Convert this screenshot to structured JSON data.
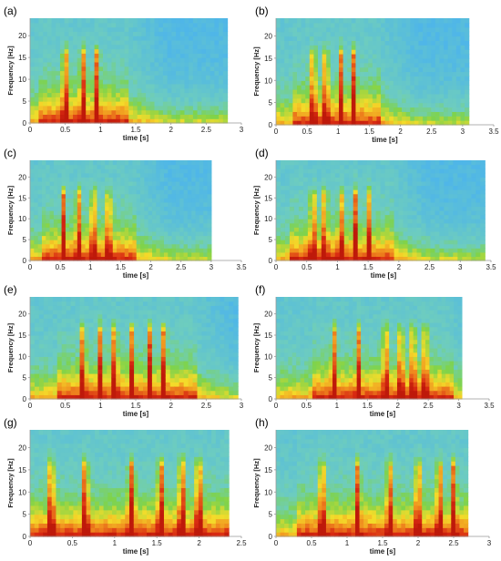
{
  "colors": {
    "background_high": "#4fb6e8",
    "low_freq_red": "#d92a12",
    "mid_yellow": "#f4dc2a",
    "transition_green": "#7fd34a",
    "axis": "#999999"
  },
  "chart_data": [
    {
      "type": "heatmap",
      "label": "(a)",
      "xlabel": "time [s]",
      "ylabel": "Frequency [Hz]",
      "xlim": [
        0,
        3
      ],
      "ylim": [
        0,
        24
      ],
      "xticks": [
        {
          "v": 0,
          "t": "0"
        },
        {
          "v": 0.5,
          "t": "0.5"
        },
        {
          "v": 1,
          "t": "1"
        },
        {
          "v": 1.5,
          "t": "1.5"
        },
        {
          "v": 2,
          "t": "2"
        },
        {
          "v": 2.5,
          "t": "2.5"
        },
        {
          "v": 3,
          "t": "3"
        }
      ],
      "yticks": [
        {
          "v": 0,
          "t": "0"
        },
        {
          "v": 5,
          "t": "5"
        },
        {
          "v": 10,
          "t": "10"
        },
        {
          "v": 15,
          "t": "15"
        },
        {
          "v": 20,
          "t": "20"
        }
      ],
      "data_end": 2.8,
      "pulses": [
        0.5,
        0.75,
        0.95
      ],
      "peak_freq": 16
    },
    {
      "type": "heatmap",
      "label": "(b)",
      "xlabel": "time [s]",
      "ylabel": "Frequency [Hz]",
      "xlim": [
        0,
        3.5
      ],
      "ylim": [
        0,
        24
      ],
      "xticks": [
        {
          "v": 0,
          "t": "0"
        },
        {
          "v": 0.5,
          "t": "0.5"
        },
        {
          "v": 1,
          "t": "1"
        },
        {
          "v": 1.5,
          "t": "1.5"
        },
        {
          "v": 2,
          "t": "2"
        },
        {
          "v": 2.5,
          "t": "2.5"
        },
        {
          "v": 3,
          "t": "3"
        },
        {
          "v": 3.5,
          "t": "3.5"
        }
      ],
      "yticks": [
        {
          "v": 0,
          "t": "0"
        },
        {
          "v": 5,
          "t": "5"
        },
        {
          "v": 10,
          "t": "10"
        },
        {
          "v": 15,
          "t": "15"
        },
        {
          "v": 20,
          "t": "20"
        }
      ],
      "data_end": 3.1,
      "pulses": [
        0.6,
        0.8,
        1.05,
        1.25
      ],
      "peak_freq": 16
    },
    {
      "type": "heatmap",
      "label": "(c)",
      "xlabel": "time [s]",
      "ylabel": "Frequency [Hz]",
      "xlim": [
        0,
        3.5
      ],
      "ylim": [
        0,
        24
      ],
      "xticks": [
        {
          "v": 0,
          "t": "0"
        },
        {
          "v": 0.5,
          "t": "0.5"
        },
        {
          "v": 1,
          "t": "1"
        },
        {
          "v": 1.5,
          "t": "1.5"
        },
        {
          "v": 2,
          "t": "2"
        },
        {
          "v": 2.5,
          "t": "2.5"
        },
        {
          "v": 3,
          "t": "3"
        },
        {
          "v": 3.5,
          "t": "3.5"
        }
      ],
      "yticks": [
        {
          "v": 0,
          "t": "0"
        },
        {
          "v": 5,
          "t": "5"
        },
        {
          "v": 10,
          "t": "10"
        },
        {
          "v": 15,
          "t": "15"
        },
        {
          "v": 20,
          "t": "20"
        }
      ],
      "data_end": 3.0,
      "pulses": [
        0.55,
        0.8,
        1.05,
        1.3
      ],
      "peak_freq": 16
    },
    {
      "type": "heatmap",
      "label": "(d)",
      "xlabel": "time [s]",
      "ylabel": "Frequency [Hz]",
      "xlim": [
        0,
        3.5
      ],
      "ylim": [
        0,
        24
      ],
      "xticks": [
        {
          "v": 0,
          "t": "0"
        },
        {
          "v": 0.5,
          "t": "0.5"
        },
        {
          "v": 1,
          "t": "1"
        },
        {
          "v": 1.5,
          "t": "1.5"
        },
        {
          "v": 2,
          "t": "2"
        },
        {
          "v": 2.5,
          "t": "2.5"
        },
        {
          "v": 3,
          "t": "3"
        },
        {
          "v": 3.5,
          "t": "3.5"
        }
      ],
      "yticks": [
        {
          "v": 0,
          "t": "0"
        },
        {
          "v": 5,
          "t": "5"
        },
        {
          "v": 10,
          "t": "10"
        },
        {
          "v": 15,
          "t": "15"
        },
        {
          "v": 20,
          "t": "20"
        }
      ],
      "data_end": 3.4,
      "pulses": [
        0.6,
        0.8,
        1.05,
        1.3,
        1.5
      ],
      "peak_freq": 16
    },
    {
      "type": "heatmap",
      "label": "(e)",
      "xlabel": "time [s]",
      "ylabel": "Frequency [Hz]",
      "xlim": [
        0,
        3
      ],
      "ylim": [
        0,
        24
      ],
      "xticks": [
        {
          "v": 0,
          "t": "0"
        },
        {
          "v": 0.5,
          "t": "0.5"
        },
        {
          "v": 1,
          "t": "1"
        },
        {
          "v": 1.5,
          "t": "1.5"
        },
        {
          "v": 2,
          "t": "2"
        },
        {
          "v": 2.5,
          "t": "2.5"
        },
        {
          "v": 3,
          "t": "3"
        }
      ],
      "yticks": [
        {
          "v": 0,
          "t": "0"
        },
        {
          "v": 5,
          "t": "5"
        },
        {
          "v": 10,
          "t": "10"
        },
        {
          "v": 15,
          "t": "15"
        },
        {
          "v": 20,
          "t": "20"
        }
      ],
      "data_end": 2.95,
      "pulses": [
        0.75,
        1.0,
        1.2,
        1.45,
        1.7,
        1.9
      ],
      "peak_freq": 16
    },
    {
      "type": "heatmap",
      "label": "(f)",
      "xlabel": "time [s]",
      "ylabel": "Frequency [Hz]",
      "xlim": [
        0,
        3.5
      ],
      "ylim": [
        0,
        24
      ],
      "xticks": [
        {
          "v": 0,
          "t": "0"
        },
        {
          "v": 0.5,
          "t": "0.5"
        },
        {
          "v": 1,
          "t": "1"
        },
        {
          "v": 1.5,
          "t": "1.5"
        },
        {
          "v": 2,
          "t": "2"
        },
        {
          "v": 2.5,
          "t": "2.5"
        },
        {
          "v": 3,
          "t": "3"
        },
        {
          "v": 3.5,
          "t": "3.5"
        }
      ],
      "yticks": [
        {
          "v": 0,
          "t": "0"
        },
        {
          "v": 5,
          "t": "5"
        },
        {
          "v": 10,
          "t": "10"
        },
        {
          "v": 15,
          "t": "15"
        },
        {
          "v": 20,
          "t": "20"
        }
      ],
      "data_end": 3.05,
      "pulses": [
        0.95,
        1.35,
        1.8,
        2.05,
        2.25,
        2.45
      ],
      "peak_freq": 16
    },
    {
      "type": "heatmap",
      "label": "(g)",
      "xlabel": "time [s]",
      "ylabel": "Frequency [Hz]",
      "xlim": [
        0,
        2.5
      ],
      "ylim": [
        0,
        24
      ],
      "xticks": [
        {
          "v": 0,
          "t": "0"
        },
        {
          "v": 0.5,
          "t": "0.5"
        },
        {
          "v": 1,
          "t": "1"
        },
        {
          "v": 1.5,
          "t": "1.5"
        },
        {
          "v": 2,
          "t": "2"
        },
        {
          "v": 2.5,
          "t": "2.5"
        }
      ],
      "yticks": [
        {
          "v": 0,
          "t": "0"
        },
        {
          "v": 5,
          "t": "5"
        },
        {
          "v": 10,
          "t": "10"
        },
        {
          "v": 15,
          "t": "15"
        },
        {
          "v": 20,
          "t": "20"
        }
      ],
      "data_end": 2.35,
      "pulses": [
        0.25,
        0.65,
        1.2,
        1.55,
        1.8,
        2.0
      ],
      "peak_freq": 16
    },
    {
      "type": "heatmap",
      "label": "(h)",
      "xlabel": "time [s]",
      "ylabel": "Frequency [Hz]",
      "xlim": [
        0,
        3
      ],
      "ylim": [
        0,
        24
      ],
      "xticks": [
        {
          "v": 0,
          "t": "0"
        },
        {
          "v": 0.5,
          "t": "0.5"
        },
        {
          "v": 1,
          "t": "1"
        },
        {
          "v": 1.5,
          "t": "1.5"
        },
        {
          "v": 2,
          "t": "2"
        },
        {
          "v": 2.5,
          "t": "2.5"
        },
        {
          "v": 3,
          "t": "3"
        }
      ],
      "yticks": [
        {
          "v": 0,
          "t": "0"
        },
        {
          "v": 5,
          "t": "5"
        },
        {
          "v": 10,
          "t": "10"
        },
        {
          "v": 15,
          "t": "15"
        },
        {
          "v": 20,
          "t": "20"
        }
      ],
      "data_end": 2.7,
      "pulses": [
        0.65,
        1.15,
        1.6,
        2.0,
        2.3,
        2.5
      ],
      "peak_freq": 16
    }
  ]
}
